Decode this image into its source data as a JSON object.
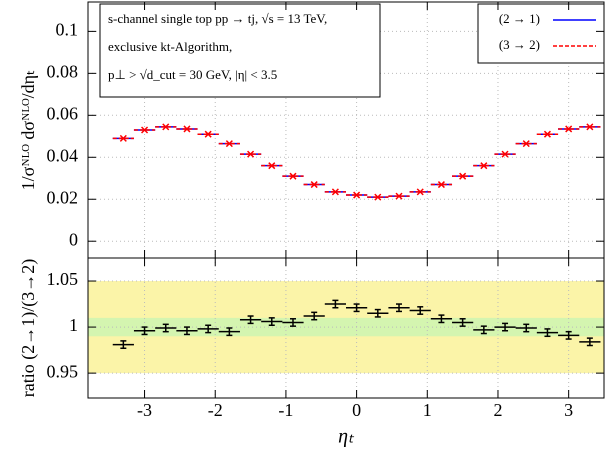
{
  "chart_data": [
    {
      "type": "errorbar",
      "ylabel": "1/σᴺᴸᴼ dσᴺᴸᴼ/dηₜ",
      "annotations": [
        "s-channel single top  pp → tj,  √s = 13 TeV,",
        "exclusive kt-Algorithm,",
        "p⊥ > √d_cut = 30 GeV,  |η| < 3.5"
      ],
      "x": [
        -3.3,
        -3.0,
        -2.7,
        -2.4,
        -2.1,
        -1.8,
        -1.5,
        -1.2,
        -0.9,
        -0.6,
        -0.3,
        0,
        0.3,
        0.6,
        0.9,
        1.2,
        1.5,
        1.8,
        2.1,
        2.4,
        2.7,
        3.0,
        3.3
      ],
      "xerr": 0.15,
      "series": [
        {
          "name": "(2 → 1)",
          "color": "#0000ff",
          "values": [
            0.049,
            0.053,
            0.0545,
            0.0535,
            0.051,
            0.0465,
            0.0415,
            0.036,
            0.031,
            0.027,
            0.0235,
            0.022,
            0.021,
            0.0215,
            0.0235,
            0.027,
            0.031,
            0.036,
            0.0415,
            0.0465,
            0.051,
            0.0535,
            0.0545
          ]
        },
        {
          "name": "(3 → 2)",
          "color": "#ff0000",
          "values": [
            0.049,
            0.053,
            0.0545,
            0.0535,
            0.051,
            0.0465,
            0.0415,
            0.036,
            0.031,
            0.027,
            0.0235,
            0.022,
            0.021,
            0.0215,
            0.0235,
            0.027,
            0.031,
            0.036,
            0.0415,
            0.0465,
            0.051,
            0.0535,
            0.0545
          ]
        }
      ],
      "xlim": [
        -3.8,
        3.5
      ],
      "xticks": [
        -3,
        -2,
        -1,
        0,
        1,
        2,
        3
      ],
      "ylim": [
        -0.008,
        0.114
      ],
      "yticks": [
        0,
        0.02,
        0.04,
        0.06,
        0.08,
        0.1
      ],
      "grid": true,
      "legend": "upper right"
    },
    {
      "type": "errorbar",
      "ylabel": "ratio (2→1)/(3→2)",
      "xlabel": "ηₜ",
      "x": [
        -3.3,
        -3.0,
        -2.7,
        -2.4,
        -2.1,
        -1.8,
        -1.5,
        -1.2,
        -0.9,
        -0.6,
        -0.3,
        0,
        0.3,
        0.6,
        0.9,
        1.2,
        1.5,
        1.8,
        2.1,
        2.4,
        2.7,
        3.0,
        3.3
      ],
      "xerr": 0.15,
      "bands": [
        {
          "from": 0.95,
          "to": 1.05,
          "color": "#fbf4a8"
        },
        {
          "from": 0.99,
          "to": 1.01,
          "color": "#d4f5b0"
        }
      ],
      "series": [
        {
          "color": "#000000",
          "values": [
            0.981,
            0.996,
            0.999,
            0.996,
            0.998,
            0.995,
            1.008,
            1.006,
            1.005,
            1.012,
            1.025,
            1.021,
            1.015,
            1.021,
            1.018,
            1.009,
            1.005,
            0.997,
            1.0,
            0.999,
            0.994,
            0.991,
            0.984
          ],
          "yerr": [
            0.004,
            0.004,
            0.004,
            0.004,
            0.004,
            0.004,
            0.004,
            0.004,
            0.004,
            0.004,
            0.004,
            0.004,
            0.004,
            0.004,
            0.004,
            0.004,
            0.004,
            0.004,
            0.004,
            0.004,
            0.004,
            0.004,
            0.004
          ]
        }
      ],
      "xlim": [
        -3.8,
        3.5
      ],
      "xticks": [
        -3,
        -2,
        -1,
        0,
        1,
        2,
        3
      ],
      "ylim": [
        0.923,
        1.075
      ],
      "yticks": [
        0.95,
        1,
        1.05
      ],
      "grid": true
    }
  ]
}
